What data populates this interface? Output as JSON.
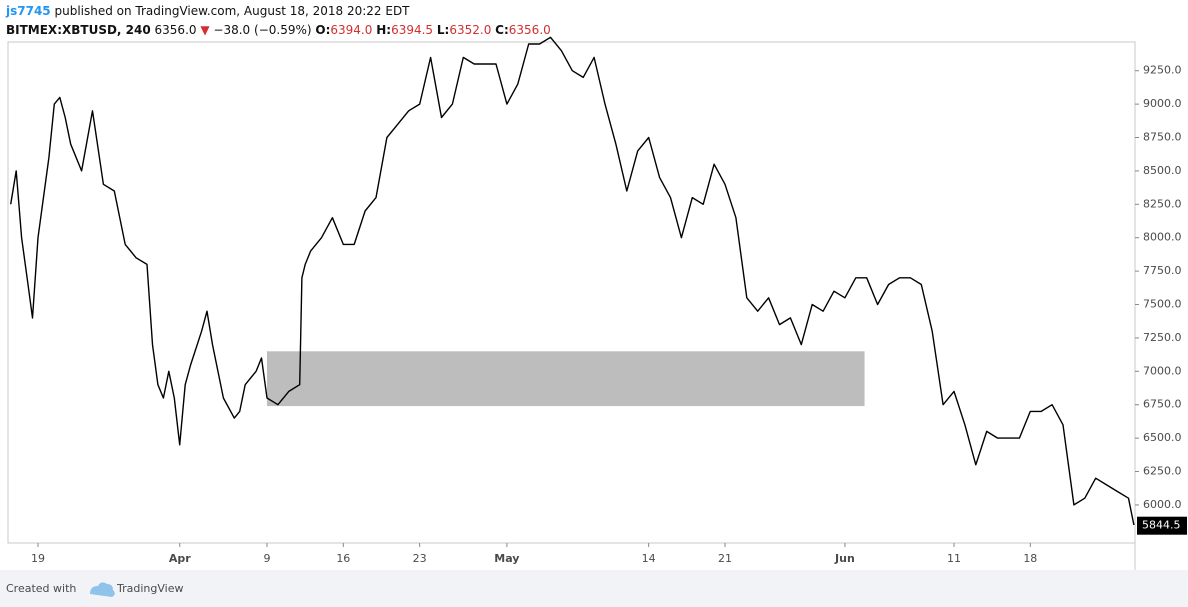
{
  "header": {
    "author": "js7745",
    "published": "published on TradingView.com, August 18, 2018 20:22 EDT",
    "symbol": "BITMEX:XBTUSD, 240",
    "last": "6356.0",
    "arrow": "▼",
    "change": "−38.0 (−0.59%)",
    "ohlc": [
      {
        "label": "O:",
        "value": "6394.0"
      },
      {
        "label": "H:",
        "value": "6394.5"
      },
      {
        "label": "L:",
        "value": "6352.0"
      },
      {
        "label": "C:",
        "value": "6356.0"
      }
    ]
  },
  "footer": {
    "created": "Created with",
    "brand": "TradingView"
  },
  "chart_data": {
    "type": "line",
    "color": "#000000",
    "x": [
      -2.5,
      -2,
      -1.5,
      -1,
      -0.5,
      0,
      1,
      1.5,
      2,
      2.5,
      3,
      4,
      5,
      6,
      7,
      8,
      9,
      10,
      10.5,
      11,
      11.5,
      12,
      12.5,
      13,
      13.5,
      14,
      15,
      15.5,
      16,
      17,
      18,
      18.5,
      19,
      20,
      20.5,
      21,
      22,
      23,
      24,
      24.2,
      24.5,
      25,
      26,
      27,
      28,
      29,
      30,
      31,
      32,
      33,
      34,
      35,
      36,
      37,
      38,
      39,
      40,
      41,
      42,
      43,
      44,
      45,
      46,
      47,
      48,
      49,
      50,
      51,
      52,
      53,
      54,
      55,
      56,
      57,
      58,
      59,
      60,
      61,
      62,
      63,
      64,
      65,
      66,
      67,
      68,
      69,
      70,
      71,
      72,
      73,
      74,
      75,
      76,
      77,
      78,
      79,
      80,
      81,
      82,
      83,
      84,
      85,
      86,
      87,
      88,
      89,
      90,
      91,
      92,
      93,
      94,
      95,
      96,
      97,
      98,
      99,
      100,
      100.5
    ],
    "values": [
      8250,
      8500,
      8000,
      7700,
      7400,
      8000,
      8600,
      9000,
      9050,
      8900,
      8700,
      8500,
      8950,
      8400,
      8350,
      7950,
      7850,
      7800,
      7200,
      6900,
      6800,
      7000,
      6800,
      6450,
      6900,
      7050,
      7300,
      7450,
      7200,
      6800,
      6650,
      6700,
      6900,
      7000,
      7100,
      6800,
      6750,
      6850,
      6900,
      7700,
      7800,
      7900,
      8000,
      8150,
      7950,
      7950,
      8200,
      8300,
      8750,
      8850,
      8950,
      9000,
      9350,
      8900,
      9000,
      9350,
      9300,
      9300,
      9300,
      9000,
      9150,
      9450,
      9450,
      9500,
      9400,
      9250,
      9200,
      9350,
      9000,
      8700,
      8350,
      8650,
      8750,
      8450,
      8300,
      8000,
      8300,
      8250,
      8550,
      8400,
      8150,
      7550,
      7450,
      7550,
      7350,
      7400,
      7200,
      7500,
      7450,
      7600,
      7550,
      7700,
      7700,
      7500,
      7650,
      7700,
      7700,
      7650,
      7300,
      6750,
      6850,
      6600,
      6300,
      6550,
      6500,
      6500,
      6500,
      6700,
      6700,
      6750,
      6600,
      6000,
      6050,
      6200,
      6150,
      6100,
      6050,
      5850
    ],
    "xlim": [
      -2.75,
      100.6
    ],
    "xticks": [
      {
        "value": 0,
        "label": "19"
      },
      {
        "value": 13,
        "label": "Apr"
      },
      {
        "value": 21,
        "label": "9"
      },
      {
        "value": 28,
        "label": "16"
      },
      {
        "value": 35,
        "label": "23"
      },
      {
        "value": 43,
        "label": "May"
      },
      {
        "value": 56,
        "label": "14"
      },
      {
        "value": 63,
        "label": "21"
      },
      {
        "value": 74,
        "label": "Jun"
      },
      {
        "value": 84,
        "label": "11"
      },
      {
        "value": 91,
        "label": "18"
      }
    ],
    "ylim": [
      5715,
      9465
    ],
    "yticks": [
      {
        "value": 6000,
        "label": "6000.0"
      },
      {
        "value": 6250,
        "label": "6250.0"
      },
      {
        "value": 6500,
        "label": "6500.0"
      },
      {
        "value": 6750,
        "label": "6750.0"
      },
      {
        "value": 7000,
        "label": "7000.0"
      },
      {
        "value": 7250,
        "label": "7250.0"
      },
      {
        "value": 7500,
        "label": "7500.0"
      },
      {
        "value": 7750,
        "label": "7750.0"
      },
      {
        "value": 8000,
        "label": "8000.0"
      },
      {
        "value": 8250,
        "label": "8250.0"
      },
      {
        "value": 8500,
        "label": "8500.0"
      },
      {
        "value": 8750,
        "label": "8750.0"
      },
      {
        "value": 9000,
        "label": "9000.0"
      },
      {
        "value": 9250,
        "label": "9250.0"
      }
    ],
    "zone": {
      "x": [
        21,
        75.8
      ],
      "y": [
        6740,
        7150
      ],
      "color": "#bdbdbd"
    },
    "last_price": 5844.5
  }
}
